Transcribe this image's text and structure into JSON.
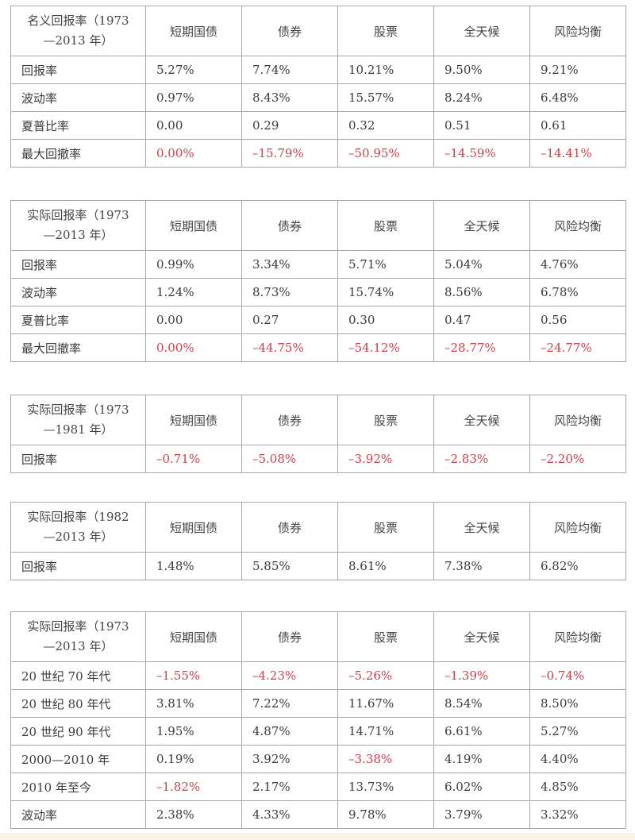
{
  "columns": [
    "短期国债",
    "债券",
    "股票",
    "全天候",
    "风险均衡"
  ],
  "tables": [
    {
      "title": "名义回报率（1973—2013 年）",
      "title_line1": "名义回报率（1973",
      "title_line2": "—2013 年）",
      "rows": [
        {
          "label": "回报率",
          "values": [
            "5.27%",
            "7.74%",
            "10.21%",
            "9.50%",
            "9.21%"
          ],
          "negative": [
            false,
            false,
            false,
            false,
            false
          ]
        },
        {
          "label": "波动率",
          "values": [
            "0.97%",
            "8.43%",
            "15.57%",
            "8.24%",
            "6.48%"
          ],
          "negative": [
            false,
            false,
            false,
            false,
            false
          ]
        },
        {
          "label": "夏普比率",
          "values": [
            "0.00",
            "0.29",
            "0.32",
            "0.51",
            "0.61"
          ],
          "negative": [
            false,
            false,
            false,
            false,
            false
          ]
        },
        {
          "label": "最大回撤率",
          "values": [
            "0.00%",
            "–15.79%",
            "–50.95%",
            "–14.59%",
            "–14.41%"
          ],
          "negative": [
            true,
            true,
            true,
            true,
            true
          ]
        }
      ]
    },
    {
      "title": "实际回报率（1973—2013 年）",
      "title_line1": "实际回报率（1973",
      "title_line2": "—2013 年）",
      "rows": [
        {
          "label": "回报率",
          "values": [
            "0.99%",
            "3.34%",
            "5.71%",
            "5.04%",
            "4.76%"
          ],
          "negative": [
            false,
            false,
            false,
            false,
            false
          ]
        },
        {
          "label": "波动率",
          "values": [
            "1.24%",
            "8.73%",
            "15.74%",
            "8.56%",
            "6.78%"
          ],
          "negative": [
            false,
            false,
            false,
            false,
            false
          ]
        },
        {
          "label": "夏普比率",
          "values": [
            "0.00",
            "0.27",
            "0.30",
            "0.47",
            "0.56"
          ],
          "negative": [
            false,
            false,
            false,
            false,
            false
          ]
        },
        {
          "label": "最大回撤率",
          "values": [
            "0.00%",
            "–44.75%",
            "–54.12%",
            "–28.77%",
            "–24.77%"
          ],
          "negative": [
            true,
            true,
            true,
            true,
            true
          ]
        }
      ]
    },
    {
      "title": "实际回报率（1973—1981 年）",
      "title_line1": "实际回报率（1973",
      "title_line2": "—1981 年）",
      "rows": [
        {
          "label": "回报率",
          "values": [
            "–0.71%",
            "–5.08%",
            "–3.92%",
            "–2.83%",
            "–2.20%"
          ],
          "negative": [
            true,
            true,
            true,
            true,
            true
          ]
        }
      ]
    },
    {
      "title": "实际回报率（1982—2013 年）",
      "title_line1": "实际回报率（1982",
      "title_line2": "—2013 年）",
      "rows": [
        {
          "label": "回报率",
          "values": [
            "1.48%",
            "5.85%",
            "8.61%",
            "7.38%",
            "6.82%"
          ],
          "negative": [
            false,
            false,
            false,
            false,
            false
          ]
        }
      ]
    },
    {
      "title": "实际回报率（1973—2013 年）",
      "title_line1": "实际回报率（1973",
      "title_line2": "—2013 年）",
      "rows": [
        {
          "label": "20 世纪 70 年代",
          "values": [
            "–1.55%",
            "–4.23%",
            "–5.26%",
            "–1.39%",
            "–0.74%"
          ],
          "negative": [
            true,
            true,
            true,
            true,
            true
          ]
        },
        {
          "label": "20 世纪 80 年代",
          "values": [
            "3.81%",
            "7.22%",
            "11.67%",
            "8.54%",
            "8.50%"
          ],
          "negative": [
            false,
            false,
            false,
            false,
            false
          ]
        },
        {
          "label": "20 世纪 90 年代",
          "values": [
            "1.95%",
            "4.87%",
            "14.71%",
            "6.61%",
            "5.27%"
          ],
          "negative": [
            false,
            false,
            false,
            false,
            false
          ]
        },
        {
          "label": "2000—2010 年",
          "values": [
            "0.19%",
            "3.92%",
            "–3.38%",
            "4.19%",
            "4.40%"
          ],
          "negative": [
            false,
            false,
            true,
            false,
            false
          ]
        },
        {
          "label": "2010 年至今",
          "values": [
            "–1.82%",
            "2.17%",
            "13.73%",
            "6.02%",
            "4.85%"
          ],
          "negative": [
            true,
            false,
            false,
            false,
            false
          ]
        },
        {
          "label": "波动率",
          "values": [
            "2.38%",
            "4.33%",
            "9.78%",
            "3.79%",
            "3.32%"
          ],
          "negative": [
            false,
            false,
            false,
            false,
            false
          ]
        }
      ]
    }
  ],
  "colors": {
    "text": "#3a3a3a",
    "negative": "#c9414c",
    "border": "#a8a8a8",
    "bottom_strip": "#fbf4e6"
  }
}
